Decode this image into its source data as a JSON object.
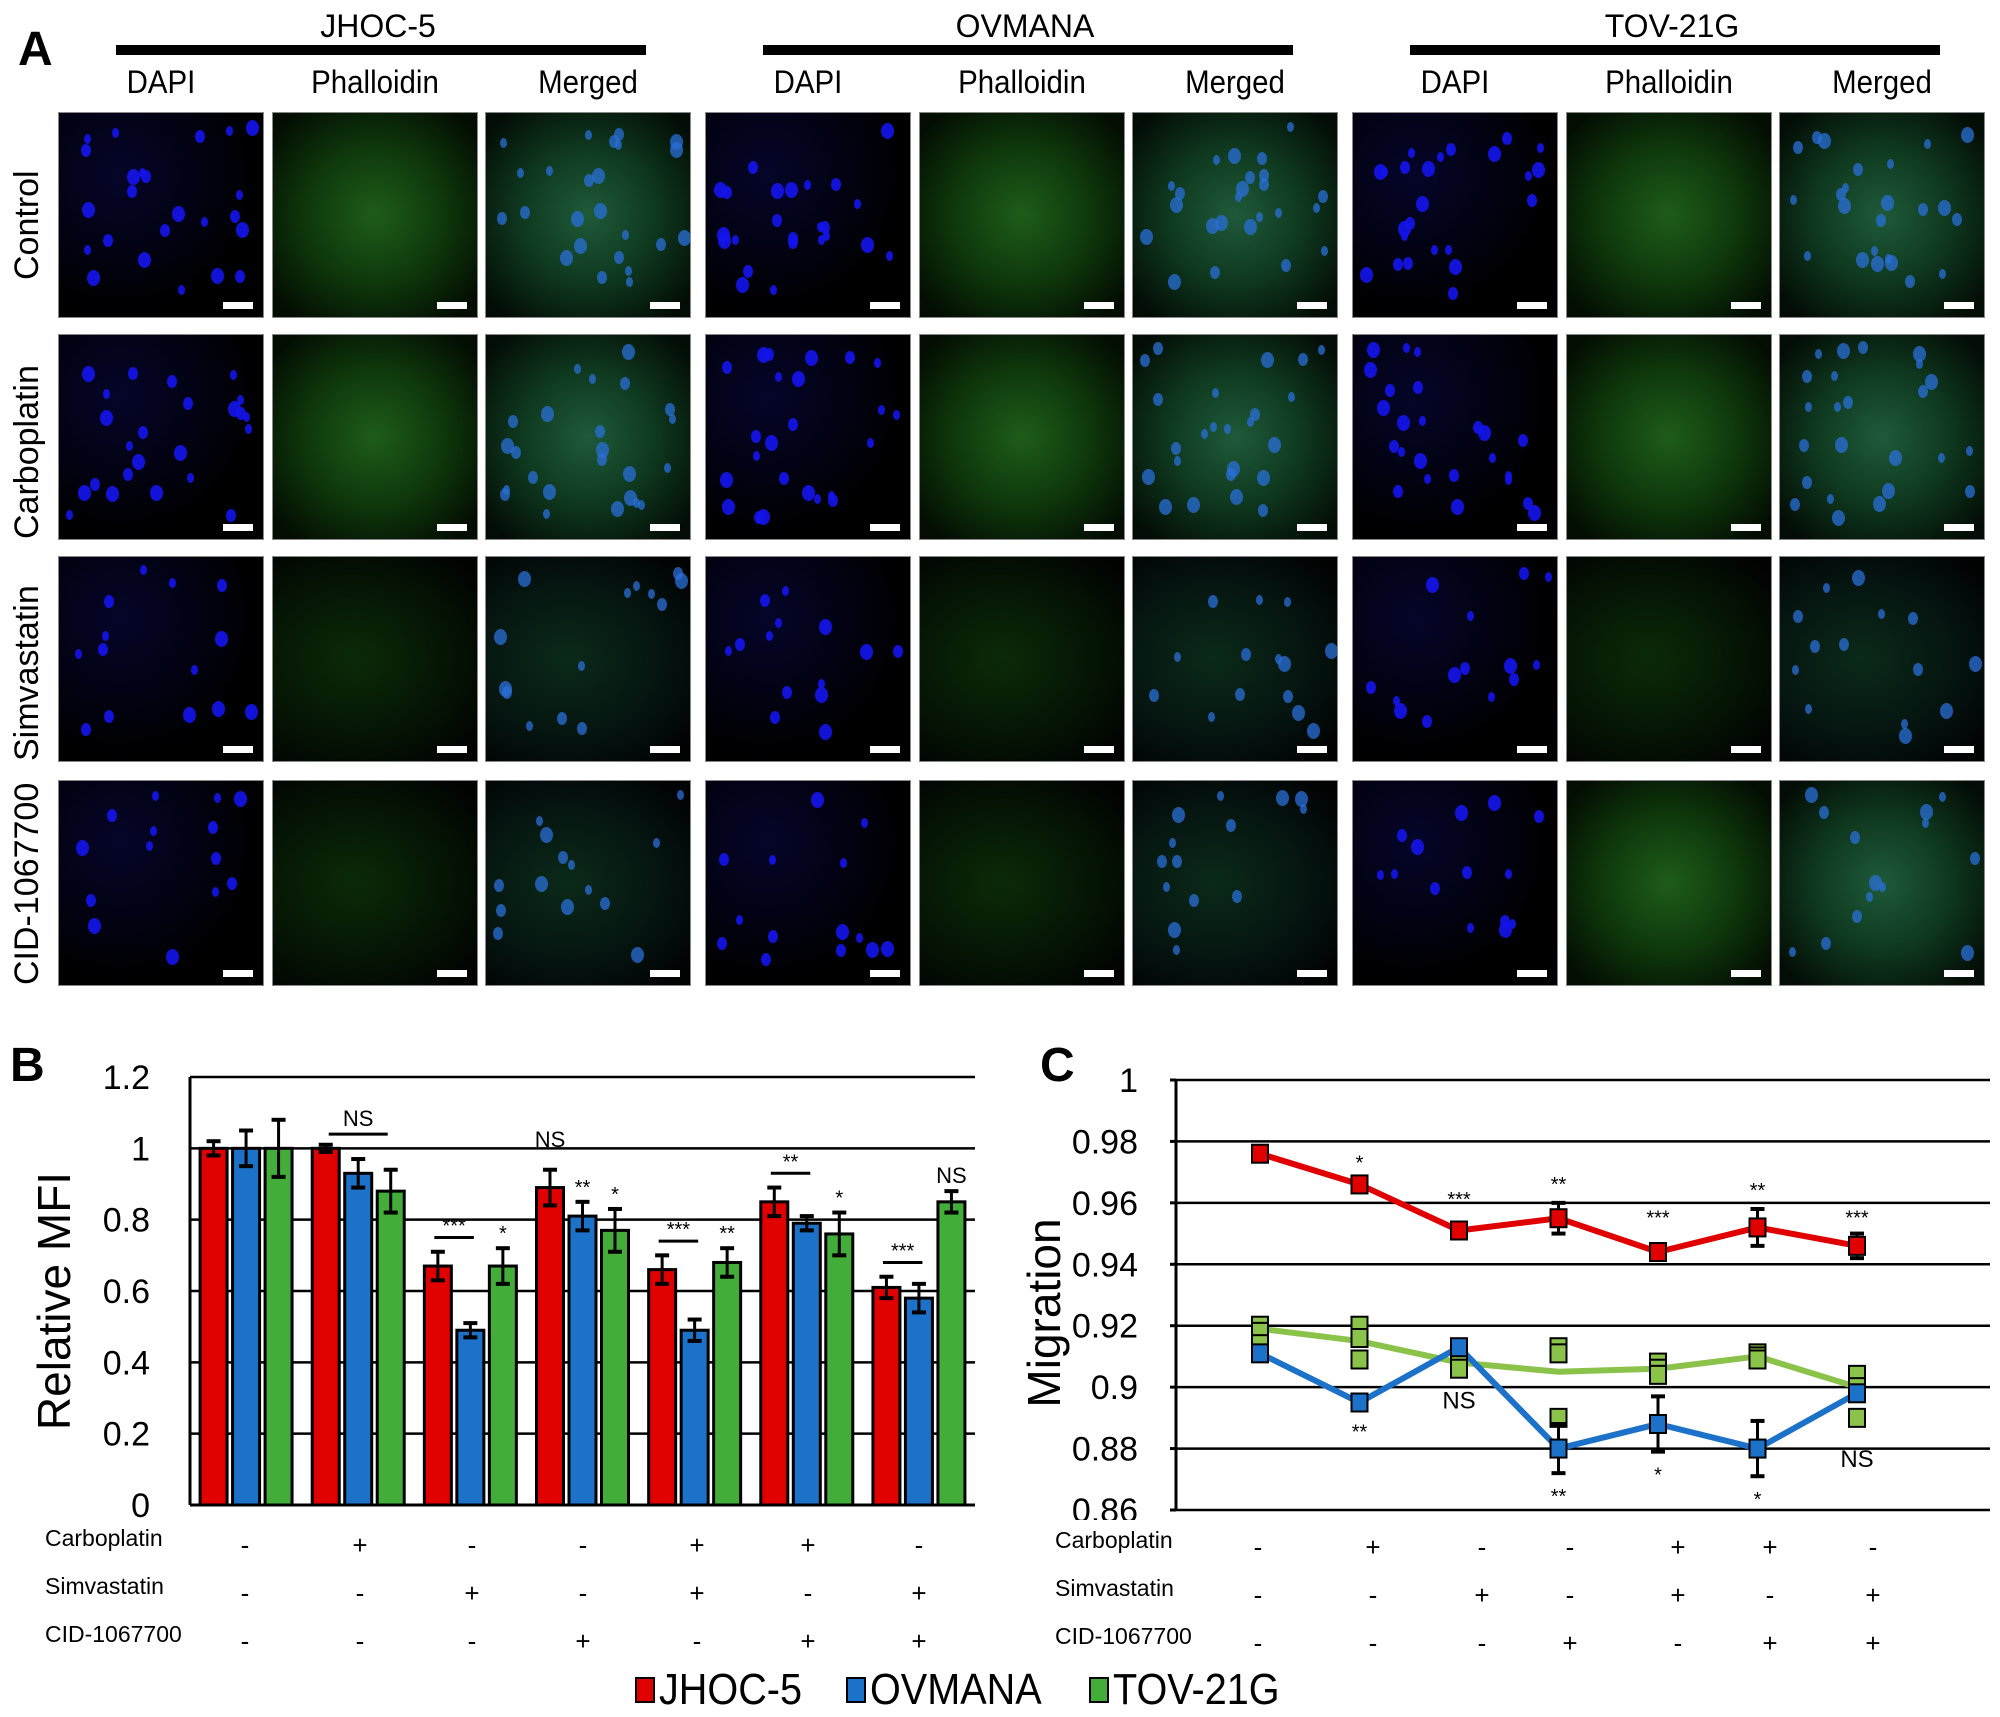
{
  "panel_a": {
    "letter": "A",
    "cell_lines": [
      {
        "name": "JHOC-5",
        "columns": [
          "DAPI",
          "Phalloidin",
          "Merged"
        ]
      },
      {
        "name": "OVMANA",
        "columns": [
          "DAPI",
          "Phalloidin",
          "Merged"
        ]
      },
      {
        "name": "TOV-21G",
        "columns": [
          "DAPI",
          "Phalloidin",
          "Merged"
        ]
      }
    ],
    "rows": [
      "Control",
      "Carboplatin",
      "Simvastatin",
      "CID-1067700"
    ],
    "image_colors": {
      "DAPI": "#1a1aff",
      "Phalloidin": "#2fae2a",
      "Merged": "#2f8f6a"
    }
  },
  "panel_b": {
    "letter": "B"
  },
  "panel_c": {
    "letter": "C"
  },
  "treatments": {
    "labels": [
      "Carboplatin",
      "Simvastatin",
      "CID-1067700"
    ],
    "conditions": [
      [
        "-",
        "-",
        "-"
      ],
      [
        "+",
        "-",
        "-"
      ],
      [
        "-",
        "+",
        "-"
      ],
      [
        "-",
        "-",
        "+"
      ],
      [
        "+",
        "+",
        "-"
      ],
      [
        "+",
        "-",
        "+"
      ],
      [
        "-",
        "+",
        "+"
      ]
    ]
  },
  "legend": [
    {
      "label": "JHOC-5",
      "color": "#e00000"
    },
    {
      "label": "OVMANA",
      "color": "#1c72c8"
    },
    {
      "label": "TOV-21G",
      "color": "#43ad3a"
    }
  ],
  "chart_data": [
    {
      "panel": "B",
      "type": "bar",
      "title": "",
      "xlabel": "",
      "ylabel": "Relative MFI",
      "ylim": [
        0,
        1.2
      ],
      "yticks": [
        0,
        0.2,
        0.4,
        0.6,
        0.8,
        1,
        1.2
      ],
      "grid": true,
      "categories": [
        "Control",
        "Carboplatin",
        "Simvastatin",
        "CID-1067700",
        "Carboplatin+Simvastatin",
        "Carboplatin+CID-1067700",
        "Simvastatin+CID-1067700"
      ],
      "series": [
        {
          "name": "JHOC-5",
          "color": "#e00000",
          "values": [
            1.0,
            1.0,
            0.67,
            0.89,
            0.66,
            0.85,
            0.61
          ],
          "errors": [
            0.02,
            0.01,
            0.04,
            0.05,
            0.04,
            0.04,
            0.03
          ]
        },
        {
          "name": "OVMANA",
          "color": "#1c72c8",
          "values": [
            1.0,
            0.93,
            0.49,
            0.81,
            0.49,
            0.79,
            0.58
          ],
          "errors": [
            0.05,
            0.04,
            0.02,
            0.04,
            0.03,
            0.02,
            0.04
          ]
        },
        {
          "name": "TOV-21G",
          "color": "#43ad3a",
          "values": [
            1.0,
            0.88,
            0.67,
            0.77,
            0.68,
            0.76,
            0.85
          ],
          "errors": [
            0.08,
            0.06,
            0.05,
            0.06,
            0.04,
            0.06,
            0.03
          ]
        }
      ],
      "annotations": [
        {
          "text": "NS",
          "group": 1,
          "bracket": true
        },
        {
          "text": "***",
          "group": 2,
          "bracket": true
        },
        {
          "text": "*",
          "group": 2,
          "series": 2
        },
        {
          "text": "NS",
          "group": 3,
          "series": 0
        },
        {
          "text": "**",
          "group": 3,
          "series": 1
        },
        {
          "text": "*",
          "group": 3,
          "series": 2
        },
        {
          "text": "***",
          "group": 4,
          "bracket": true
        },
        {
          "text": "**",
          "group": 4,
          "series": 2
        },
        {
          "text": "**",
          "group": 5,
          "bracket": true
        },
        {
          "text": "*",
          "group": 5,
          "series": 2
        },
        {
          "text": "***",
          "group": 6,
          "bracket": true
        },
        {
          "text": "NS",
          "group": 6,
          "series": 2
        }
      ]
    },
    {
      "panel": "C",
      "type": "line",
      "title": "",
      "xlabel": "",
      "ylabel": "Migration",
      "ylim": [
        0.86,
        1.0
      ],
      "yticks": [
        0.86,
        0.88,
        0.9,
        0.92,
        0.94,
        0.96,
        0.98,
        1
      ],
      "grid": true,
      "categories": [
        "Control",
        "Carboplatin",
        "Simvastatin",
        "CID-1067700",
        "Carboplatin+Simvastatin",
        "Carboplatin+CID-1067700",
        "Simvastatin+CID-1067700"
      ],
      "series": [
        {
          "name": "JHOC-5",
          "color": "#e00000",
          "values": [
            0.976,
            0.966,
            0.951,
            0.955,
            0.944,
            0.952,
            0.946
          ],
          "errors": [
            0.002,
            0.001,
            0.001,
            0.005,
            0.002,
            0.006,
            0.004
          ]
        },
        {
          "name": "OVMANA",
          "color": "#1c72c8",
          "values": [
            0.911,
            0.895,
            0.913,
            0.88,
            0.888,
            0.88,
            0.898
          ],
          "errors": [
            0.001,
            0.002,
            0.002,
            0.008,
            0.009,
            0.009,
            0.002
          ]
        },
        {
          "name": "TOV-21G",
          "color": "#8bc34a",
          "values": [
            0.919,
            0.915,
            0.908,
            0.905,
            0.906,
            0.91,
            0.9
          ],
          "errors": [
            0.0,
            0.0,
            0.0,
            0.0,
            0.0,
            0.0,
            0.0
          ]
        }
      ],
      "annotations": [
        {
          "text": "*",
          "index": 1,
          "series": 0
        },
        {
          "text": "***",
          "index": 2,
          "series": 0
        },
        {
          "text": "**",
          "index": 3,
          "series": 0
        },
        {
          "text": "***",
          "index": 4,
          "series": 0
        },
        {
          "text": "**",
          "index": 5,
          "series": 0
        },
        {
          "text": "***",
          "index": 6,
          "series": 0
        },
        {
          "text": "**",
          "index": 1,
          "series": 1
        },
        {
          "text": "NS",
          "index": 2,
          "series": 1
        },
        {
          "text": "**",
          "index": 3,
          "series": 1
        },
        {
          "text": "*",
          "index": 4,
          "series": 1
        },
        {
          "text": "*",
          "index": 5,
          "series": 1
        },
        {
          "text": "NS",
          "index": 6,
          "series": 1
        }
      ]
    }
  ]
}
